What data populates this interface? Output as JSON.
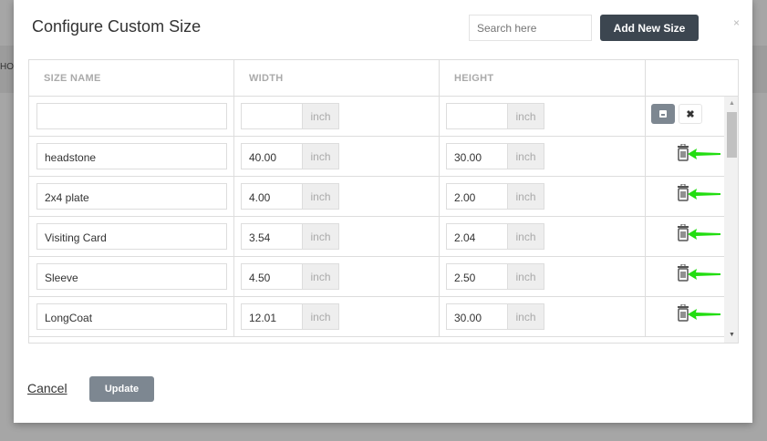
{
  "background": {
    "text": "HO"
  },
  "modal": {
    "title": "Configure Custom Size",
    "search_placeholder": "Search here",
    "add_button": "Add New Size",
    "close": "×"
  },
  "table": {
    "headers": [
      "SIZE NAME",
      "WIDTH",
      "HEIGHT",
      ""
    ],
    "unit": "inch",
    "rows": [
      {
        "name": "headstone",
        "width": "40.00",
        "height": "30.00"
      },
      {
        "name": "2x4 plate",
        "width": "4.00",
        "height": "2.00"
      },
      {
        "name": "Visiting Card",
        "width": "3.54",
        "height": "2.04"
      },
      {
        "name": "Sleeve",
        "width": "4.50",
        "height": "2.50"
      },
      {
        "name": "LongCoat",
        "width": "12.01",
        "height": "30.00"
      }
    ]
  },
  "footer": {
    "cancel": "Cancel",
    "update": "Update"
  },
  "colors": {
    "annotation_arrow": "#22dd11",
    "primary": "#3c4650"
  }
}
